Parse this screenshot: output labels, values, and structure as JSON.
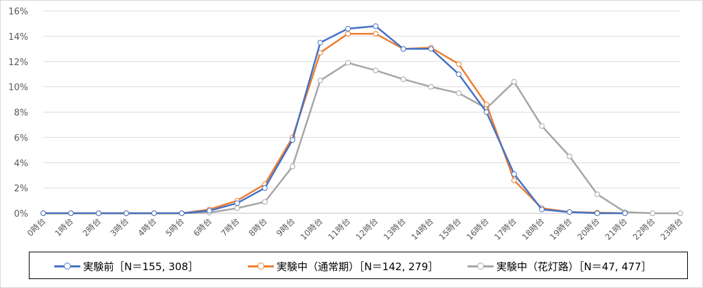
{
  "chart_data": {
    "type": "line",
    "categories": [
      "0時台",
      "1時台",
      "2時台",
      "3時台",
      "4時台",
      "5時台",
      "6時台",
      "7時台",
      "8時台",
      "9時台",
      "10時台",
      "11時台",
      "12時台",
      "13時台",
      "14時台",
      "15時台",
      "16時台",
      "17時台",
      "18時台",
      "19時台",
      "20時台",
      "21時台",
      "22時台",
      "23時台"
    ],
    "ylim": [
      0,
      16
    ],
    "yticks": [
      "0%",
      "2%",
      "4%",
      "6%",
      "8%",
      "10%",
      "12%",
      "14%",
      "16%"
    ],
    "grid": true,
    "legend_position": "bottom",
    "series": [
      {
        "name": "実験前［N＝155, 308］",
        "color": "#4472C4",
        "values": [
          0,
          0,
          0,
          0,
          0,
          0,
          0.2,
          0.8,
          2.0,
          5.8,
          13.5,
          14.6,
          14.8,
          13.0,
          13.0,
          11.0,
          8.0,
          3.1,
          0.3,
          0.1,
          0,
          0,
          null,
          null
        ]
      },
      {
        "name": "実験中（通常期）［N＝142, 279］",
        "color": "#ED7D31",
        "values": [
          0,
          0,
          0,
          0,
          0,
          0,
          0.3,
          1.0,
          2.3,
          6.0,
          12.7,
          14.2,
          14.2,
          13.0,
          13.1,
          11.8,
          8.6,
          2.6,
          0.4,
          0.1,
          0.05,
          0,
          null,
          null
        ]
      },
      {
        "name": "実験中（花灯路）［N＝47, 477］",
        "color": "#A5A5A5",
        "values": [
          0,
          0,
          0,
          0,
          0,
          0,
          0.05,
          0.4,
          0.9,
          3.7,
          10.5,
          11.9,
          11.3,
          10.6,
          10.0,
          9.5,
          8.3,
          10.4,
          6.9,
          4.5,
          1.5,
          0.1,
          0,
          0
        ]
      }
    ]
  }
}
